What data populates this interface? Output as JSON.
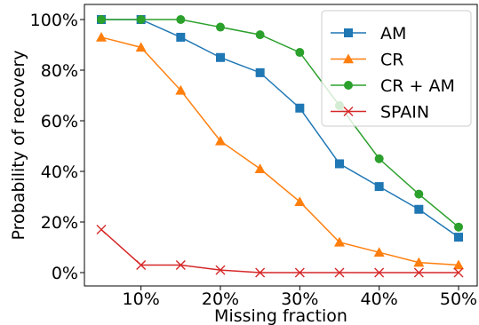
{
  "chart_data": {
    "type": "line",
    "xlabel": "Missing fraction",
    "ylabel": "Probability of recovery",
    "x": [
      5,
      10,
      15,
      20,
      25,
      30,
      35,
      40,
      45,
      50
    ],
    "xlim": [
      5,
      50
    ],
    "ylim": [
      0,
      100
    ],
    "x_ticks": [
      {
        "value": 10,
        "label": "10%"
      },
      {
        "value": 20,
        "label": "20%"
      },
      {
        "value": 30,
        "label": "30%"
      },
      {
        "value": 40,
        "label": "40%"
      },
      {
        "value": 50,
        "label": "50%"
      }
    ],
    "y_ticks": [
      {
        "value": 0,
        "label": "0%"
      },
      {
        "value": 20,
        "label": "20%"
      },
      {
        "value": 40,
        "label": "40%"
      },
      {
        "value": 60,
        "label": "60%"
      },
      {
        "value": 80,
        "label": "80%"
      },
      {
        "value": 100,
        "label": "100%"
      }
    ],
    "grid": false,
    "legend_position": "top-right",
    "series": [
      {
        "name": "AM",
        "color": "#1f77b4",
        "marker": "square",
        "values": [
          100,
          100,
          93,
          85,
          79,
          65,
          43,
          34,
          25,
          14
        ]
      },
      {
        "name": "CR",
        "color": "#ff7f0e",
        "marker": "triangle",
        "values": [
          93,
          89,
          72,
          52,
          41,
          28,
          12,
          8,
          4,
          3
        ]
      },
      {
        "name": "CR + AM",
        "color": "#2ca02c",
        "marker": "circle",
        "values": [
          100,
          100,
          100,
          97,
          94,
          87,
          66,
          45,
          31,
          18
        ]
      },
      {
        "name": "SPAIN",
        "color": "#d62728",
        "marker": "x",
        "values": [
          17,
          3,
          3,
          1,
          0,
          0,
          0,
          0,
          0,
          0
        ]
      }
    ]
  }
}
